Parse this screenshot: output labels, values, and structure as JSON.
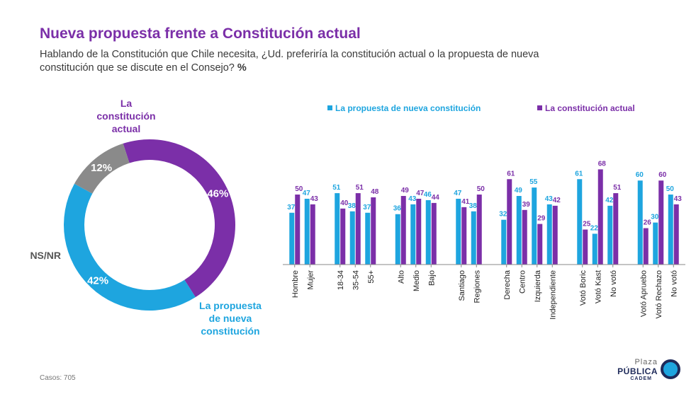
{
  "header": {
    "title": "Nueva propuesta frente a Constitución actual",
    "subtitle": "Hablando de la Constitución que Chile necesita, ¿Ud. preferiría la constitución actual o la propuesta de nueva constitución que se discute en el Consejo?",
    "unit": "%"
  },
  "footer": {
    "cases": "Casos: 705"
  },
  "logo": {
    "line1": "Plaza",
    "line2": "PÚBLICA",
    "line3": "CADEM"
  },
  "colors": {
    "propuesta": "#1ea5df",
    "actual": "#7b2fa8",
    "nsnr": "#8a8a8a"
  },
  "chart_data": [
    {
      "type": "pie",
      "variant": "donut",
      "labels": [
        "La constitución actual",
        "La propuesta de nueva constitución",
        "NS/NR"
      ],
      "values": [
        46,
        42,
        12
      ],
      "value_labels": [
        "46%",
        "42%",
        "12%"
      ]
    },
    {
      "type": "bar",
      "legend_position": "top",
      "series": [
        {
          "name": "La propuesta de nueva constitución",
          "values": [
            37,
            47,
            51,
            38,
            37,
            36,
            43,
            46,
            47,
            38,
            32,
            49,
            55,
            43,
            61,
            22,
            42,
            60,
            30,
            50
          ]
        },
        {
          "name": "La constitución actual",
          "values": [
            50,
            43,
            40,
            51,
            48,
            49,
            47,
            44,
            41,
            50,
            61,
            39,
            29,
            42,
            25,
            68,
            51,
            26,
            60,
            43
          ]
        }
      ],
      "categories": [
        "Hombre",
        "Mujer",
        "18-34",
        "35-54",
        "55+",
        "Alto",
        "Medio",
        "Bajo",
        "Santiago",
        "Regiones",
        "Derecha",
        "Centro",
        "Izquierda",
        "Independiente",
        "Votó Boric",
        "Votó Kast",
        "No votó",
        "Votó Apruebo",
        "Votó Rechazo",
        "No votó"
      ],
      "groups": [
        2,
        3,
        3,
        2,
        4,
        3,
        3
      ],
      "ylim": [
        0,
        80
      ],
      "grid": false
    }
  ]
}
